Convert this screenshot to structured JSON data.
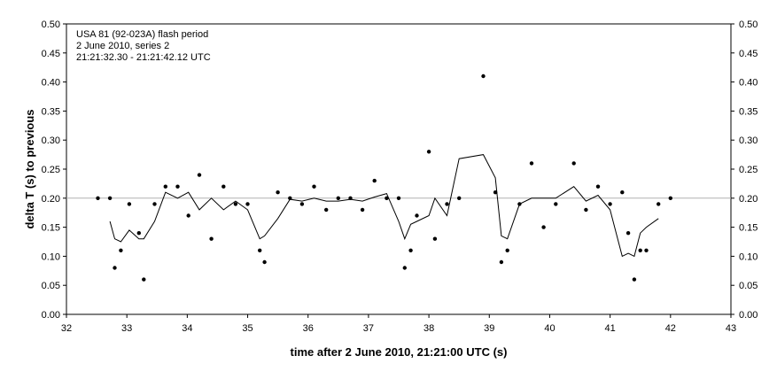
{
  "chart_data": {
    "type": "scatter",
    "xlabel": "time after 2 June 2010, 21:21:00 UTC (s)",
    "ylabel": "delta T (s) to previous",
    "xlim": [
      32,
      43
    ],
    "ylim": [
      0,
      0.5
    ],
    "x_ticks": [
      32,
      33,
      34,
      35,
      36,
      37,
      38,
      39,
      40,
      41,
      42,
      43
    ],
    "y_ticks": [
      0.0,
      0.05,
      0.1,
      0.15,
      0.2,
      0.25,
      0.3,
      0.35,
      0.4,
      0.45,
      0.5
    ],
    "y_tick_labels": [
      "0.00",
      "0.05",
      "0.10",
      "0.15",
      "0.20",
      "0.25",
      "0.30",
      "0.35",
      "0.40",
      "0.45",
      "0.50"
    ],
    "grid": false,
    "annotations": [
      "USA 81 (92-023A) flash period",
      "2 June 2010, series 2",
      "21:21:32.30 - 21:21:42.12 UTC"
    ],
    "reference_line": 0.2,
    "series": [
      {
        "kind": "points",
        "x": [
          32.52,
          32.72,
          32.8,
          32.9,
          33.04,
          33.2,
          33.28,
          33.46,
          33.64,
          33.84,
          34.02,
          34.2,
          34.4,
          34.6,
          34.8,
          35.0,
          35.2,
          35.28,
          35.5,
          35.7,
          35.9,
          36.1,
          36.3,
          36.5,
          36.7,
          36.9,
          37.1,
          37.3,
          37.5,
          37.6,
          37.7,
          37.8,
          38.0,
          38.1,
          38.3,
          38.5,
          38.9,
          39.1,
          39.2,
          39.3,
          39.5,
          39.7,
          39.9,
          40.1,
          40.4,
          40.6,
          40.8,
          41.0,
          41.2,
          41.3,
          41.4,
          41.5,
          41.6,
          41.8,
          42.0
        ],
        "y": [
          0.2,
          0.2,
          0.08,
          0.11,
          0.19,
          0.14,
          0.06,
          0.19,
          0.22,
          0.22,
          0.17,
          0.24,
          0.13,
          0.22,
          0.19,
          0.19,
          0.11,
          0.09,
          0.21,
          0.2,
          0.19,
          0.22,
          0.18,
          0.2,
          0.2,
          0.18,
          0.23,
          0.2,
          0.2,
          0.08,
          0.11,
          0.17,
          0.28,
          0.13,
          0.19,
          0.2,
          0.41,
          0.21,
          0.09,
          0.11,
          0.19,
          0.26,
          0.15,
          0.19,
          0.26,
          0.18,
          0.22,
          0.19,
          0.21,
          0.14,
          0.06,
          0.11,
          0.11,
          0.19,
          0.2
        ]
      },
      {
        "kind": "line",
        "x": [
          32.72,
          32.8,
          32.9,
          33.04,
          33.2,
          33.28,
          33.46,
          33.64,
          33.84,
          34.02,
          34.2,
          34.4,
          34.6,
          34.8,
          35.0,
          35.2,
          35.28,
          35.5,
          35.7,
          35.9,
          36.1,
          36.3,
          36.5,
          36.7,
          36.9,
          37.1,
          37.3,
          37.5,
          37.6,
          37.7,
          37.8,
          38.0,
          38.1,
          38.3,
          38.5,
          38.9,
          39.1,
          39.2,
          39.3,
          39.5,
          39.7,
          39.9,
          40.1,
          40.4,
          40.6,
          40.8,
          41.0,
          41.2,
          41.3,
          41.4,
          41.5,
          41.6,
          41.8
        ],
        "y": [
          0.16,
          0.13,
          0.125,
          0.145,
          0.13,
          0.13,
          0.16,
          0.21,
          0.2,
          0.21,
          0.18,
          0.2,
          0.18,
          0.195,
          0.18,
          0.13,
          0.135,
          0.165,
          0.198,
          0.195,
          0.2,
          0.195,
          0.195,
          0.198,
          0.195,
          0.202,
          0.208,
          0.16,
          0.13,
          0.155,
          0.16,
          0.17,
          0.2,
          0.17,
          0.268,
          0.275,
          0.235,
          0.135,
          0.13,
          0.19,
          0.2,
          0.2,
          0.2,
          0.22,
          0.195,
          0.205,
          0.18,
          0.1,
          0.105,
          0.1,
          0.14,
          0.15,
          0.165
        ]
      }
    ]
  }
}
